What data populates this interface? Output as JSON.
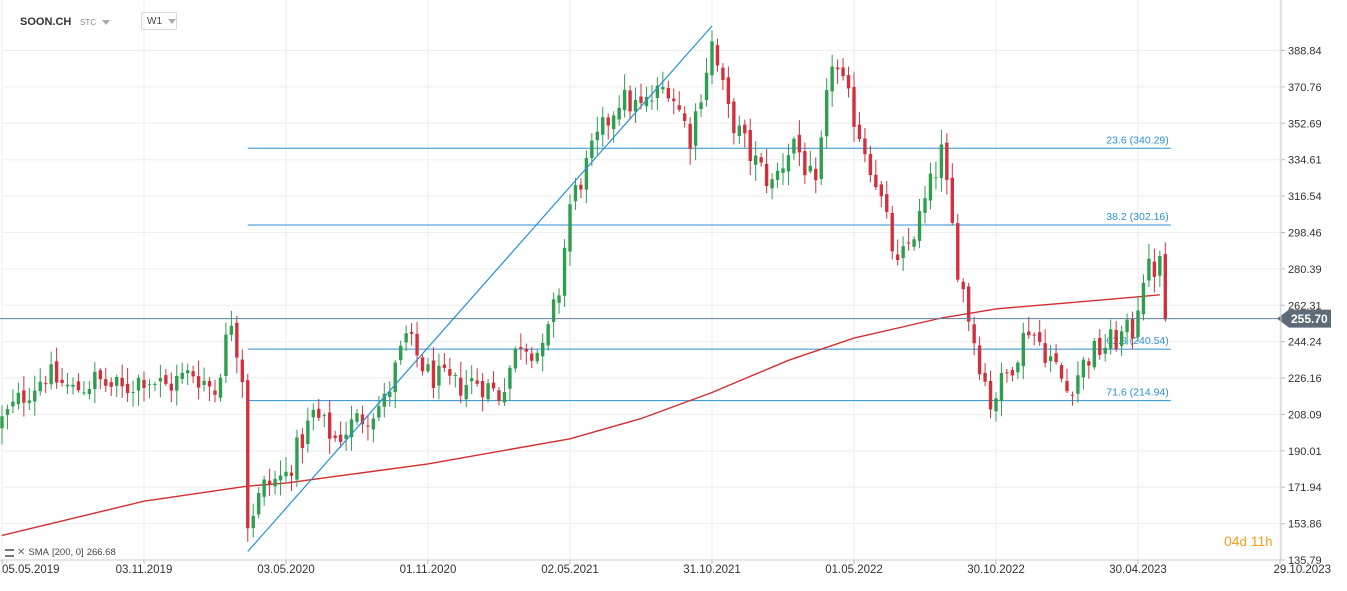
{
  "header": {
    "symbol": "SOON.CH",
    "market": "STC",
    "timeframe": "W1"
  },
  "countdown": {
    "days": "04",
    "days_unit": "d",
    "hours": "11",
    "hours_unit": "h"
  },
  "indicator_legend": {
    "label": "SMA",
    "params": "[200,  0]",
    "value": "266.68"
  },
  "colors": {
    "up_candle": "#2e9e4f",
    "down_candle": "#d0313d",
    "sma_line": "#d32f2f",
    "fib_line": "#2a8fd6",
    "trend_line": "#2a8fd6",
    "price_line": "#5c7f99",
    "price_tag": "#5d6b76",
    "countdown": "#f2a01b"
  },
  "chart_data": {
    "type": "candlestick",
    "x_axis": {
      "type": "date",
      "range": [
        "2019-05-05",
        "2023-10-29"
      ],
      "tick_labels": [
        "05.05.2019",
        "03.11.2019",
        "03.05.2020",
        "01.11.2020",
        "02.05.2021",
        "31.10.2021",
        "01.05.2022",
        "30.10.2022",
        "30.04.2023",
        "29.10.2023"
      ]
    },
    "y_axis": {
      "range": [
        135.79,
        404
      ],
      "tick_labels": [
        "388.84",
        "370.76",
        "352.69",
        "334.61",
        "316.54",
        "298.46",
        "280.39",
        "262.31",
        "244.24",
        "226.16",
        "208.09",
        "190.01",
        "171.94",
        "153.86",
        "135.79"
      ],
      "grid": true
    },
    "current_price": {
      "value": 255.7,
      "label": "255.70"
    },
    "fibonacci_levels": [
      {
        "label": "23.6 (340.29)",
        "value": 340.29
      },
      {
        "label": "38.2 (302.16)",
        "value": 302.16
      },
      {
        "label": "61.8 (240.54)",
        "value": 240.54
      },
      {
        "label": "71.6 (214.94)",
        "value": 214.94
      }
    ],
    "fibonacci_range": {
      "start": "2020-03-15",
      "end": "2023-06-11"
    },
    "trend_line": {
      "from": {
        "date": "2020-03-15",
        "value": 140.0
      },
      "to": {
        "date": "2021-10-31",
        "value": 401.0
      }
    },
    "sma": {
      "name": "SMA",
      "period": 200,
      "points": [
        [
          "2019-05-05",
          148.0
        ],
        [
          "2019-11-03",
          165.0
        ],
        [
          "2020-03-15",
          172.5
        ],
        [
          "2020-05-03",
          174.0
        ],
        [
          "2020-11-01",
          183.5
        ],
        [
          "2021-05-02",
          196.0
        ],
        [
          "2021-08-01",
          206.0
        ],
        [
          "2021-10-31",
          219.0
        ],
        [
          "2022-02-06",
          235.0
        ],
        [
          "2022-05-01",
          246.0
        ],
        [
          "2022-08-21",
          256.0
        ],
        [
          "2022-10-30",
          260.5
        ],
        [
          "2023-01-29",
          263.5
        ],
        [
          "2023-04-30",
          266.5
        ],
        [
          "2023-05-28",
          267.5
        ]
      ]
    },
    "close_path": {
      "comment_free": true,
      "points": [
        [
          "2019-05-05",
          205
        ],
        [
          "2019-06-02",
          218
        ],
        [
          "2019-06-30",
          228
        ],
        [
          "2019-08-04",
          220
        ],
        [
          "2019-09-01",
          225
        ],
        [
          "2019-10-06",
          220
        ],
        [
          "2019-11-03",
          227
        ],
        [
          "2019-12-01",
          222
        ],
        [
          "2020-01-05",
          229
        ],
        [
          "2020-02-02",
          220
        ],
        [
          "2020-02-23",
          256
        ],
        [
          "2020-03-08",
          228
        ],
        [
          "2020-03-15",
          155
        ],
        [
          "2020-04-05",
          172
        ],
        [
          "2020-05-03",
          178
        ],
        [
          "2020-06-07",
          208
        ],
        [
          "2020-07-05",
          196
        ],
        [
          "2020-08-02",
          205
        ],
        [
          "2020-09-06",
          214
        ],
        [
          "2020-10-04",
          246
        ],
        [
          "2020-11-01",
          228
        ],
        [
          "2020-12-06",
          222
        ],
        [
          "2021-01-03",
          225
        ],
        [
          "2021-01-31",
          218
        ],
        [
          "2021-02-28",
          245
        ],
        [
          "2021-03-28",
          238
        ],
        [
          "2021-04-18",
          270
        ],
        [
          "2021-05-02",
          312
        ],
        [
          "2021-06-06",
          344
        ],
        [
          "2021-07-04",
          365
        ],
        [
          "2021-08-01",
          360
        ],
        [
          "2021-09-05",
          372
        ],
        [
          "2021-10-03",
          346
        ],
        [
          "2021-10-31",
          392
        ],
        [
          "2021-11-21",
          358
        ],
        [
          "2021-12-19",
          337
        ],
        [
          "2022-01-16",
          322
        ],
        [
          "2022-02-13",
          345
        ],
        [
          "2022-03-13",
          318
        ],
        [
          "2022-04-03",
          385
        ],
        [
          "2022-05-01",
          356
        ],
        [
          "2022-05-29",
          325
        ],
        [
          "2022-06-26",
          280
        ],
        [
          "2022-07-24",
          305
        ],
        [
          "2022-08-21",
          338
        ],
        [
          "2022-09-11",
          282
        ],
        [
          "2022-10-02",
          245
        ],
        [
          "2022-10-23",
          214
        ],
        [
          "2022-11-13",
          228
        ],
        [
          "2022-12-11",
          252
        ],
        [
          "2023-01-08",
          236
        ],
        [
          "2023-01-29",
          220
        ],
        [
          "2023-02-26",
          237
        ],
        [
          "2023-03-26",
          244
        ],
        [
          "2023-04-23",
          250
        ],
        [
          "2023-05-07",
          278
        ],
        [
          "2023-05-28",
          282
        ],
        [
          "2023-06-04",
          256
        ]
      ]
    }
  }
}
